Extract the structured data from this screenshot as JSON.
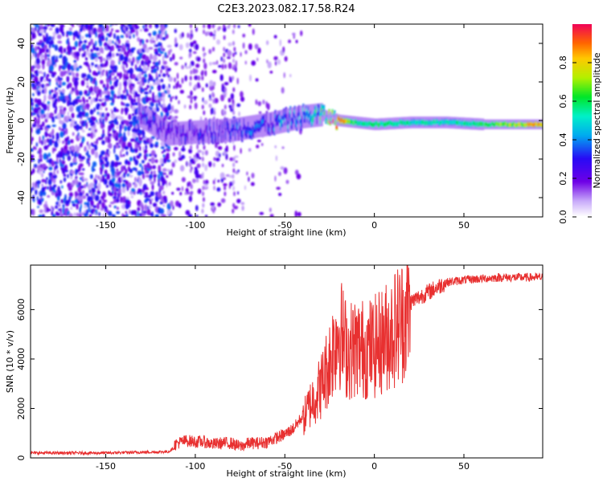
{
  "title": "C2E3.2023.082.17.58.R24",
  "chart_data": [
    {
      "type": "heatmap",
      "xlabel": "Height of straight line (km)",
      "ylabel": "Frequency (Hz)",
      "xlim": [
        -192,
        94
      ],
      "ylim": [
        -50,
        50
      ],
      "xticks": [
        -150,
        -100,
        -50,
        0,
        50
      ],
      "xtick_labels": [
        "-150",
        "-100",
        "-50",
        "0",
        "50"
      ],
      "yticks": [
        -40,
        -20,
        0,
        20,
        40
      ],
      "ytick_labels": [
        "-40",
        "-20",
        "0",
        "20",
        "40"
      ],
      "colorbar": {
        "label": "Normalized spectral amplitude",
        "range": [
          0,
          1
        ],
        "ticks": [
          0.0,
          0.2,
          0.4,
          0.6,
          0.8
        ],
        "tick_labels": [
          "0.0",
          "0.2",
          "0.4",
          "0.6",
          "0.8"
        ],
        "colormap": "rainbow"
      },
      "ridge": {
        "x": [
          -192,
          -150,
          -132,
          -115,
          -100,
          -80,
          -60,
          -50,
          -40,
          -30,
          -20,
          -10,
          0,
          20,
          40,
          60,
          80,
          94
        ],
        "frequency": [
          0,
          0,
          3,
          -7,
          -6,
          -5,
          -2,
          0,
          2,
          3,
          0,
          -1,
          -2,
          -1,
          -1,
          -2,
          -2,
          -2
        ],
        "amplitude": [
          0.25,
          0.25,
          0.35,
          0.3,
          0.3,
          0.35,
          0.4,
          0.45,
          0.5,
          0.6,
          0.95,
          0.55,
          0.6,
          0.55,
          0.55,
          0.6,
          0.75,
          0.9
        ]
      }
    },
    {
      "type": "line",
      "xlabel": "Height of straight line (km)",
      "ylabel": "SNR (10 * v/v)",
      "xlim": [
        -192,
        94
      ],
      "ylim": [
        0,
        7800
      ],
      "xticks": [
        -150,
        -100,
        -50,
        0,
        50
      ],
      "xtick_labels": [
        "-150",
        "-100",
        "-50",
        "0",
        "50"
      ],
      "yticks": [
        0,
        2000,
        4000,
        6000
      ],
      "ytick_labels": [
        "0",
        "2000",
        "4000",
        "6000"
      ],
      "color": "#e83030",
      "series": [
        {
          "x": [
            -192,
            -170,
            -150,
            -130,
            -115,
            -110,
            -105,
            -100,
            -95,
            -90,
            -85,
            -80,
            -75,
            -70,
            -65,
            -60,
            -55,
            -50,
            -45,
            -40,
            -35,
            -30,
            -25,
            -20,
            -15,
            -10,
            -5,
            0,
            5,
            10,
            15,
            20,
            25,
            30,
            35,
            40,
            50,
            60,
            70,
            80,
            94
          ],
          "values": [
            200,
            200,
            200,
            230,
            250,
            500,
            600,
            550,
            550,
            450,
            500,
            500,
            350,
            500,
            500,
            550,
            700,
            850,
            1100,
            1600,
            2400,
            3000,
            4100,
            5500,
            4500,
            4700,
            4600,
            4700,
            5000,
            5400,
            5800,
            6300,
            6500,
            6700,
            6900,
            7100,
            7200,
            7250,
            7300,
            7300,
            7300
          ]
        }
      ]
    }
  ]
}
